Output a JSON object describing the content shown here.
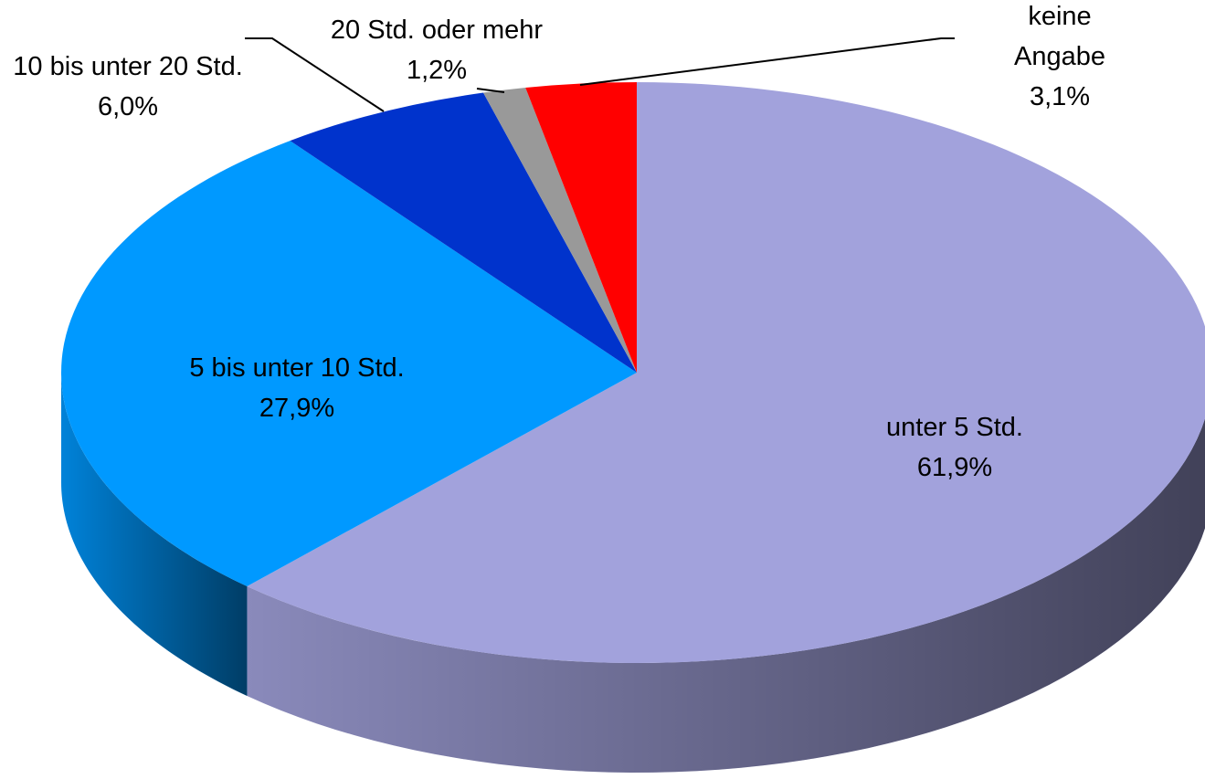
{
  "chart_data": {
    "type": "pie",
    "categories": [
      "unter 5 Std.",
      "5 bis unter 10 Std.",
      "10 bis unter 20 Std.",
      "20 Std. oder mehr",
      "keine Angabe"
    ],
    "values": [
      61.9,
      27.9,
      6.0,
      1.2,
      3.1
    ],
    "value_labels": [
      "61,9%",
      "27,9%",
      "6,0%",
      "1,2%",
      "3,1%"
    ],
    "colors": [
      "#a2a2dc",
      "#0099ff",
      "#0033cc",
      "#999999",
      "#ff0000"
    ]
  }
}
